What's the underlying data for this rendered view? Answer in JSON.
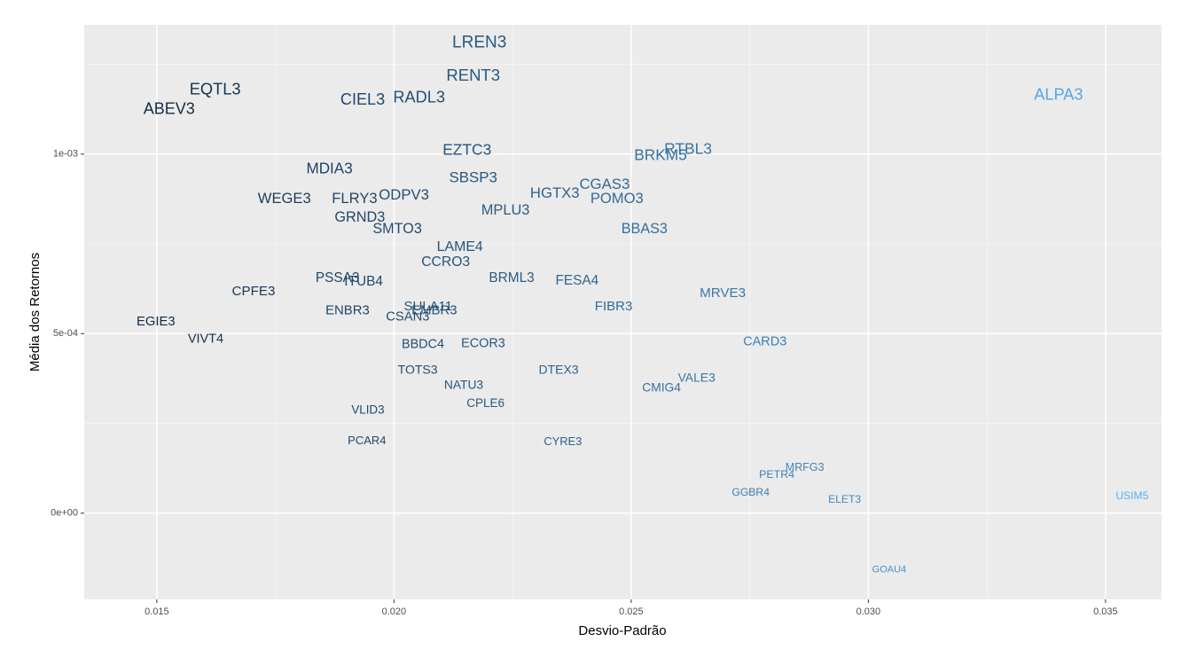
{
  "chart_data": {
    "type": "scatter",
    "x_label": "Desvio-Padrão",
    "y_label": "Média dos Retornos",
    "labels": [
      "LREN3",
      "RENT3",
      "EQTL3",
      "ABEV3",
      "CIEL3",
      "RADL3",
      "ALPA3",
      "EZTC3",
      "RTBL3",
      "BRKM5",
      "MDIA3",
      "SBSP3",
      "CGAS3",
      "HGTX3",
      "WEGE3",
      "FLRY3",
      "ODPV3",
      "POMO3",
      "MPLU3",
      "GRND3",
      "SMTO3",
      "BBAS3",
      "LAME4",
      "CCRO3",
      "PSSA3",
      "ITUB4",
      "BRML3",
      "FESA4",
      "CPFE3",
      "MRVE3",
      "FIBR3",
      "ENBR3",
      "SULA11",
      "EMBR3",
      "CSAN3",
      "EGIE3",
      "VIVT4",
      "CARD3",
      "BBDC4",
      "ECOR3",
      "TOTS3",
      "DTEX3",
      "VALE3",
      "CMIG4",
      "NATU3",
      "CPLE6",
      "VLID3",
      "PCAR4",
      "CYRE3",
      "MRFG3",
      "PETR4",
      "GGBR4",
      "ELET3",
      "USIM5",
      "GOAU4"
    ],
    "x": [
      0.0218,
      0.02167,
      0.01623,
      0.01526,
      0.01934,
      0.02053,
      0.03401,
      0.02154,
      0.0262,
      0.02562,
      0.01864,
      0.02167,
      0.02444,
      0.02339,
      0.01769,
      0.01917,
      0.02021,
      0.0247,
      0.02235,
      0.01928,
      0.02007,
      0.02528,
      0.02139,
      0.02109,
      0.01881,
      0.01936,
      0.02248,
      0.02386,
      0.01704,
      0.02693,
      0.02463,
      0.01902,
      0.02072,
      0.02085,
      0.02029,
      0.01498,
      0.01603,
      0.02782,
      0.02061,
      0.02188,
      0.0205,
      0.02347,
      0.02638,
      0.02564,
      0.02147,
      0.02193,
      0.01945,
      0.01943,
      0.02356,
      0.02866,
      0.02807,
      0.02752,
      0.0295,
      0.03556,
      0.03044
    ],
    "y": [
      0.00131,
      0.001217,
      0.001178,
      0.001123,
      0.00115,
      0.001156,
      0.001163,
      0.00101,
      0.001012,
      0.000995,
      0.000958,
      0.000933,
      0.000914,
      0.000889,
      0.000874,
      0.000874,
      0.000884,
      0.000874,
      0.000842,
      0.000822,
      0.00079,
      0.00079,
      0.000741,
      0.000699,
      0.000654,
      0.000644,
      0.000654,
      0.000647,
      0.000617,
      0.000612,
      0.000575,
      0.000563,
      0.000575,
      0.000563,
      0.000546,
      0.000533,
      0.000484,
      0.000477,
      0.000469,
      0.000472,
      0.000398,
      0.000398,
      0.000375,
      0.000348,
      0.000356,
      0.000304,
      0.000286,
      0.0002,
      0.000198,
      0.000126,
      0.000106,
      5.7e-05,
      3.7e-05,
      4.7e-05,
      -0.000158
    ],
    "colors": {
      "low": "#132B43",
      "high": "#56B1F7"
    },
    "xlim": [
      0.01347,
      0.03618
    ],
    "xticks": [
      0.015,
      {
        "value": 0.02,
        "label": "0.020"
      },
      0.025,
      {
        "value": 0.03,
        "label": "0.030"
      },
      0.035
    ],
    "ylim": [
      -0.00024,
      0.00136
    ],
    "yticks": [
      {
        "value": 0,
        "label": "0e+00"
      },
      {
        "value": 0.0005,
        "label": "5e-04"
      },
      {
        "value": 0.001,
        "label": "1e-03"
      }
    ],
    "grid": true
  }
}
